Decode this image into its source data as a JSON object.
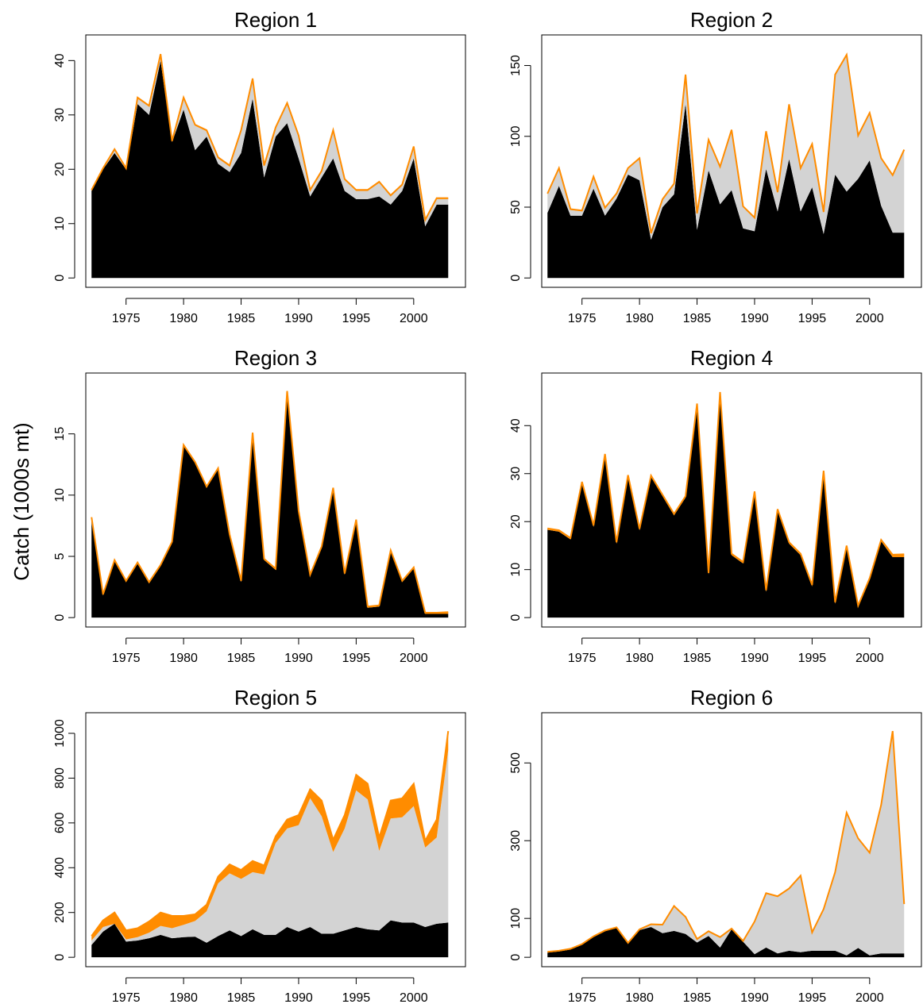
{
  "ylabel": "Catch (1000s mt)",
  "colors": {
    "layer1": "#000000",
    "layer2": "#d3d3d3",
    "layer3": "#ff8c00",
    "line": "#ff8c00"
  },
  "chart_data": [
    {
      "type": "area",
      "title": "Region 1",
      "xlim": [
        1971.5,
        2004.5
      ],
      "ylim": [
        0,
        43
      ],
      "xticks": [
        "1975",
        "1980",
        "1985",
        "1990",
        "1995",
        "2000"
      ],
      "yticks": [
        "0",
        "10",
        "20",
        "30",
        "40"
      ],
      "x": [
        1972,
        1973,
        1974,
        1975,
        1976,
        1977,
        1978,
        1979,
        1980,
        1981,
        1982,
        1983,
        1984,
        1985,
        1986,
        1987,
        1988,
        1989,
        1990,
        1991,
        1992,
        1993,
        1994,
        1995,
        1996,
        1997,
        1998,
        1999,
        2000,
        2001,
        2002,
        2003
      ],
      "series": [
        {
          "values": [
            16,
            20,
            23,
            20,
            32,
            30,
            40,
            25,
            31,
            23.5,
            26,
            21,
            19.5,
            23,
            33,
            18.5,
            26,
            28.5,
            22,
            15,
            18.5,
            22,
            16,
            14.5,
            14.5,
            15,
            13.5,
            16,
            22,
            9.5,
            13.5,
            13.5
          ]
        },
        {
          "values": [
            0,
            0,
            0.5,
            0,
            1,
            1.5,
            1,
            0,
            2,
            4.5,
            1,
            1,
            1,
            4,
            3.5,
            2,
            1.5,
            3.5,
            4,
            1,
            1,
            5,
            2,
            1.5,
            1.5,
            2.5,
            1.5,
            1,
            2,
            1,
            1,
            1
          ]
        },
        {
          "values": [
            0.2,
            0.2,
            0.2,
            0.2,
            0.2,
            0.2,
            0.2,
            0.2,
            0.2,
            0.2,
            0.2,
            0.2,
            0.2,
            0.2,
            0.2,
            0.2,
            0.2,
            0.2,
            0.2,
            0.2,
            0.2,
            0.2,
            0.2,
            0.2,
            0.2,
            0.2,
            0.2,
            0.2,
            0.2,
            0.2,
            0.2,
            0.2
          ]
        }
      ]
    },
    {
      "type": "area",
      "title": "Region 2",
      "xlim": [
        1971.5,
        2004.5
      ],
      "ylim": [
        0,
        165
      ],
      "xticks": [
        "1975",
        "1980",
        "1985",
        "1990",
        "1995",
        "2000"
      ],
      "yticks": [
        "0",
        "50",
        "100",
        "150"
      ],
      "x": [
        1972,
        1973,
        1974,
        1975,
        1976,
        1977,
        1978,
        1979,
        1980,
        1981,
        1982,
        1983,
        1984,
        1985,
        1986,
        1987,
        1988,
        1989,
        1990,
        1991,
        1992,
        1993,
        1994,
        1995,
        1996,
        1997,
        1998,
        1999,
        2000,
        2001,
        2002,
        2003
      ],
      "series": [
        {
          "values": [
            46,
            65,
            44,
            44,
            63,
            44,
            56,
            73,
            69,
            27,
            50,
            59,
            123,
            34,
            76,
            52,
            62,
            35,
            33,
            77,
            47,
            84,
            47,
            64,
            31,
            73,
            61,
            70,
            83,
            51,
            32,
            32
          ]
        },
        {
          "values": [
            13,
            12,
            4,
            3,
            8,
            5,
            3,
            4,
            15,
            4,
            5,
            7,
            20,
            11,
            21,
            26,
            42,
            15,
            9,
            26,
            13,
            38,
            30,
            30,
            15,
            70,
            96,
            30,
            33,
            33,
            40,
            58
          ]
        },
        {
          "values": [
            0.6,
            0.6,
            0.6,
            0.6,
            0.6,
            0.6,
            0.6,
            0.6,
            0.6,
            0.6,
            0.6,
            0.6,
            0.6,
            0.6,
            0.6,
            0.6,
            0.6,
            0.6,
            0.6,
            0.6,
            0.6,
            0.6,
            0.6,
            0.6,
            0.6,
            0.6,
            0.6,
            0.6,
            0.6,
            0.6,
            0.6,
            0.6
          ]
        }
      ]
    },
    {
      "type": "area",
      "title": "Region 3",
      "xlim": [
        1971.5,
        2004.5
      ],
      "ylim": [
        0,
        19.2
      ],
      "xticks": [
        "1975",
        "1980",
        "1985",
        "1990",
        "1995",
        "2000"
      ],
      "yticks": [
        "0",
        "5",
        "10",
        "15"
      ],
      "x": [
        1972,
        1973,
        1974,
        1975,
        1976,
        1977,
        1978,
        1979,
        1980,
        1981,
        1982,
        1983,
        1984,
        1985,
        1986,
        1987,
        1988,
        1989,
        1990,
        1991,
        1992,
        1993,
        1994,
        1995,
        1996,
        1997,
        1998,
        1999,
        2000,
        2001,
        2002,
        2003
      ],
      "series": [
        {
          "values": [
            8.1,
            1.8,
            4.6,
            2.9,
            4.4,
            2.8,
            4.2,
            6.1,
            14,
            12.6,
            10.6,
            12.1,
            6.7,
            2.9,
            15,
            4.7,
            3.9,
            18.4,
            8.6,
            3.4,
            5.7,
            10.5,
            3.5,
            7.9,
            0.8,
            0.9,
            5.4,
            2.9,
            4,
            0.3,
            0.3,
            0.3
          ]
        },
        {
          "values": [
            0,
            0,
            0,
            0,
            0,
            0,
            0,
            0,
            0,
            0,
            0,
            0,
            0,
            0,
            0,
            0,
            0,
            0,
            0,
            0,
            0,
            0,
            0,
            0,
            0,
            0,
            0,
            0,
            0,
            0,
            0,
            0
          ]
        },
        {
          "values": [
            0.1,
            0.1,
            0.1,
            0.1,
            0.1,
            0.1,
            0.1,
            0.1,
            0.1,
            0.1,
            0.1,
            0.1,
            0.1,
            0.1,
            0.1,
            0.1,
            0.1,
            0.1,
            0.1,
            0.1,
            0.1,
            0.1,
            0.1,
            0.1,
            0.1,
            0.1,
            0.1,
            0.1,
            0.1,
            0.1,
            0.1,
            0.15
          ]
        }
      ]
    },
    {
      "type": "area",
      "title": "Region 4",
      "xlim": [
        1971.5,
        2004.5
      ],
      "ylim": [
        0,
        49
      ],
      "xticks": [
        "1975",
        "1980",
        "1985",
        "1990",
        "1995",
        "2000"
      ],
      "yticks": [
        "0",
        "10",
        "20",
        "30",
        "40"
      ],
      "x": [
        1972,
        1973,
        1974,
        1975,
        1976,
        1977,
        1978,
        1979,
        1980,
        1981,
        1982,
        1983,
        1984,
        1985,
        1986,
        1987,
        1988,
        1989,
        1990,
        1991,
        1992,
        1993,
        1994,
        1995,
        1996,
        1997,
        1998,
        1999,
        2000,
        2001,
        2002,
        2003
      ],
      "series": [
        {
          "values": [
            18.3,
            17.9,
            16.3,
            28,
            18.9,
            33.8,
            15.4,
            29.4,
            18.2,
            29.3,
            25.3,
            21.3,
            25,
            44.3,
            9,
            46.7,
            13,
            11.3,
            26,
            5.4,
            22.3,
            15.4,
            13,
            6.5,
            30.3,
            2.9,
            14.7,
            2.2,
            7.9,
            15.9,
            12.6,
            12.6
          ]
        },
        {
          "values": [
            0,
            0,
            0,
            0,
            0,
            0,
            0,
            0,
            0,
            0,
            0,
            0,
            0,
            0,
            0,
            0,
            0,
            0,
            0,
            0,
            0,
            0,
            0,
            0,
            0,
            0,
            0,
            0,
            0,
            0,
            0,
            0
          ]
        },
        {
          "values": [
            0.3,
            0.3,
            0.3,
            0.3,
            0.3,
            0.3,
            0.3,
            0.3,
            0.3,
            0.3,
            0.3,
            0.3,
            0.3,
            0.3,
            0.3,
            0.3,
            0.3,
            0.3,
            0.3,
            0.3,
            0.3,
            0.3,
            0.3,
            0.3,
            0.3,
            0.3,
            0.3,
            0.3,
            0.3,
            0.3,
            0.5,
            0.6
          ]
        }
      ]
    },
    {
      "type": "area",
      "title": "Region 5",
      "xlim": [
        1971.5,
        2004.5
      ],
      "ylim": [
        0,
        1050
      ],
      "xticks": [
        "1975",
        "1980",
        "1985",
        "1990",
        "1995",
        "2000"
      ],
      "yticks": [
        "0",
        "200",
        "400",
        "600",
        "800",
        "1000"
      ],
      "x": [
        1972,
        1973,
        1974,
        1975,
        1976,
        1977,
        1978,
        1979,
        1980,
        1981,
        1982,
        1983,
        1984,
        1985,
        1986,
        1987,
        1988,
        1989,
        1990,
        1991,
        1992,
        1993,
        1994,
        1995,
        1996,
        1997,
        1998,
        1999,
        2000,
        2001,
        2002,
        2003
      ],
      "series": [
        {
          "values": [
            55,
            115,
            150,
            70,
            75,
            85,
            100,
            85,
            90,
            92,
            65,
            95,
            120,
            95,
            125,
            100,
            100,
            135,
            115,
            135,
            105,
            105,
            120,
            135,
            125,
            120,
            165,
            155,
            155,
            135,
            150,
            155
          ]
        },
        {
          "values": [
            20,
            20,
            0,
            10,
            15,
            25,
            40,
            45,
            55,
            70,
            140,
            235,
            255,
            255,
            255,
            270,
            410,
            440,
            475,
            575,
            525,
            365,
            455,
            610,
            580,
            355,
            455,
            470,
            520,
            355,
            385,
            770
          ]
        },
        {
          "values": [
            20,
            30,
            50,
            40,
            40,
            50,
            60,
            55,
            40,
            30,
            30,
            30,
            40,
            40,
            50,
            40,
            30,
            40,
            45,
            40,
            70,
            55,
            60,
            70,
            70,
            60,
            80,
            85,
            100,
            30,
            80,
            85
          ]
        }
      ]
    },
    {
      "type": "area",
      "title": "Region 6",
      "xlim": [
        1971.5,
        2004.5
      ],
      "ylim": [
        0,
        605
      ],
      "xticks": [
        "1975",
        "1980",
        "1985",
        "1990",
        "1995",
        "2000"
      ],
      "yticks": [
        "0",
        "100",
        "300",
        "500"
      ],
      "x": [
        1972,
        1973,
        1974,
        1975,
        1976,
        1977,
        1978,
        1979,
        1980,
        1981,
        1982,
        1983,
        1984,
        1985,
        1986,
        1987,
        1988,
        1989,
        1990,
        1991,
        1992,
        1993,
        1994,
        1995,
        1996,
        1997,
        1998,
        1999,
        2000,
        2001,
        2002,
        2003
      ],
      "series": [
        {
          "values": [
            12,
            15,
            20,
            32,
            52,
            67,
            75,
            35,
            70,
            78,
            62,
            68,
            60,
            38,
            55,
            25,
            72,
            40,
            8,
            25,
            10,
            17,
            13,
            17,
            17,
            17,
            5,
            24,
            5,
            10,
            10,
            10
          ]
        },
        {
          "values": [
            0,
            0,
            0,
            0,
            0,
            0,
            0,
            0,
            0,
            5,
            20,
            62,
            42,
            7,
            10,
            25,
            0,
            0,
            82,
            138,
            145,
            158,
            195,
            45,
            105,
            200,
            365,
            280,
            262,
            380,
            570,
            125
          ]
        },
        {
          "values": [
            2,
            2,
            2,
            2,
            2,
            2,
            2,
            2,
            2,
            2,
            2,
            2,
            2,
            2,
            2,
            2,
            2,
            2,
            2,
            2,
            2,
            2,
            2,
            2,
            2,
            2,
            2,
            2,
            2,
            2,
            2,
            2
          ]
        }
      ]
    }
  ]
}
